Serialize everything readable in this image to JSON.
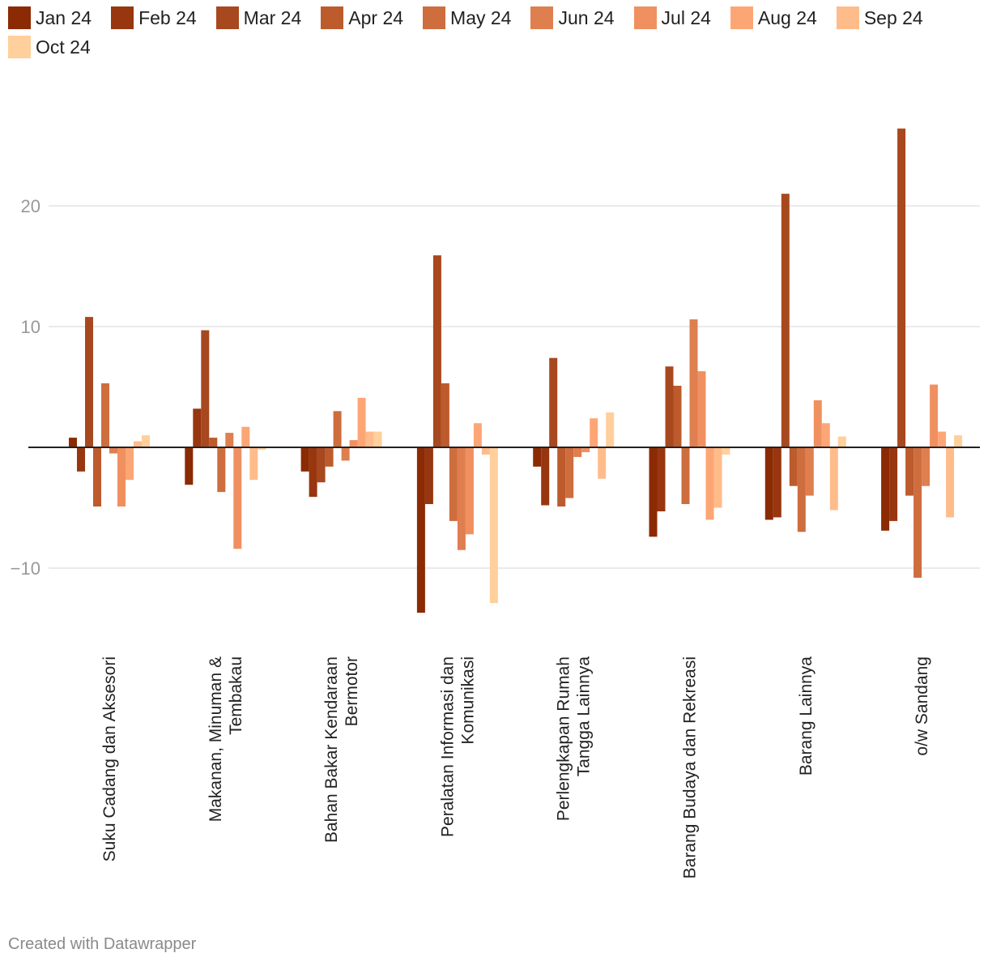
{
  "chart_data": {
    "type": "bar",
    "title": "",
    "xlabel": "",
    "ylabel": "",
    "ylim": [
      -15,
      30
    ],
    "yticks": [
      -10,
      10,
      20
    ],
    "ytick_labels": [
      "−10",
      "10",
      "20"
    ],
    "grid": true,
    "legend_position": "top",
    "categories": [
      [
        "Suku Cadang dan Aksesori"
      ],
      [
        "Makanan, Minuman &",
        "Tembakau"
      ],
      [
        "Bahan Bakar Kendaraan",
        "Bermotor"
      ],
      [
        "Peralatan Informasi dan",
        "Komunikasi"
      ],
      [
        "Perlengkapan Rumah",
        "Tangga Lainnya"
      ],
      [
        "Barang Budaya dan Rekreasi"
      ],
      [
        "Barang Lainnya"
      ],
      [
        "o/w Sandang"
      ]
    ],
    "series": [
      {
        "name": "Jan 24",
        "color": "#8b2a03",
        "values": [
          0.8,
          -3.1,
          -2.0,
          -13.7,
          -1.6,
          -7.4,
          -6.0,
          -6.9
        ]
      },
      {
        "name": "Feb 24",
        "color": "#983610",
        "values": [
          -2.0,
          3.2,
          -4.1,
          -4.7,
          -4.8,
          -5.3,
          -5.8,
          -6.1
        ]
      },
      {
        "name": "Mar 24",
        "color": "#a8481e",
        "values": [
          10.8,
          9.7,
          -2.9,
          15.9,
          7.4,
          6.7,
          21.0,
          26.4
        ]
      },
      {
        "name": "Apr 24",
        "color": "#bd5b2d",
        "values": [
          -4.9,
          0.8,
          -1.6,
          5.3,
          -4.9,
          5.1,
          -3.2,
          -4.0
        ]
      },
      {
        "name": "May 24",
        "color": "#ce6d3e",
        "values": [
          5.3,
          -3.7,
          3.0,
          -6.1,
          -4.2,
          -4.7,
          -7.0,
          -10.8
        ]
      },
      {
        "name": "Jun 24",
        "color": "#df7e4e",
        "values": [
          -0.5,
          1.2,
          -1.1,
          -8.5,
          -0.8,
          10.6,
          -4.0,
          -3.2
        ]
      },
      {
        "name": "Jul 24",
        "color": "#f09060",
        "values": [
          -4.9,
          -8.4,
          0.6,
          -7.2,
          -0.4,
          6.3,
          3.9,
          5.2
        ]
      },
      {
        "name": "Aug 24",
        "color": "#fda675",
        "values": [
          -2.7,
          1.7,
          4.1,
          2.0,
          2.4,
          -6.0,
          2.0,
          1.3
        ]
      },
      {
        "name": "Sep 24",
        "color": "#ffbc8b",
        "values": [
          0.5,
          -2.7,
          1.3,
          -0.6,
          -2.6,
          -5.0,
          -5.2,
          -5.8
        ]
      },
      {
        "name": "Oct 24",
        "color": "#ffcf9c",
        "values": [
          1.0,
          -0.2,
          1.3,
          -12.9,
          2.9,
          -0.6,
          0.9,
          1.0
        ]
      }
    ]
  },
  "footer": {
    "credit": "Created with Datawrapper"
  }
}
